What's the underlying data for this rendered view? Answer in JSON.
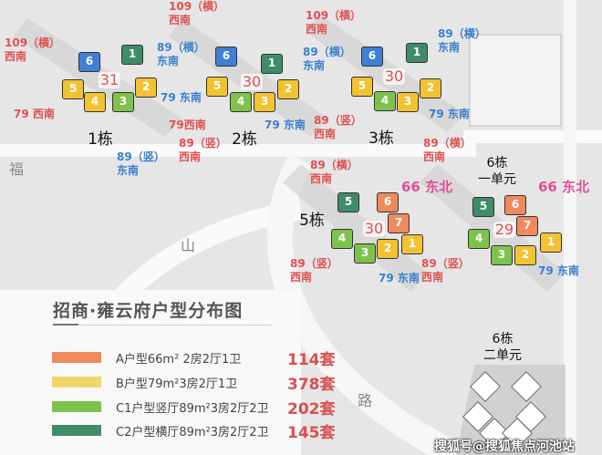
{
  "title": "招商·雍云府户型分布图",
  "roads": [
    "福",
    "山",
    "路"
  ],
  "colors": {
    "blue": "#3f7fd4",
    "dkgreen": "#3f8c68",
    "ltgreen": "#7fc24b",
    "yellow": "#f2c233",
    "orange": "#ef8a5c",
    "label_red": "#e05050",
    "label_blue": "#3a7fd0",
    "label_pink": "#e0509a"
  },
  "buildings": [
    {
      "name": "1栋",
      "center": "31",
      "units": [
        {
          "no": "6",
          "type": "blue"
        },
        {
          "no": "1",
          "type": "dkgreen"
        },
        {
          "no": "5",
          "type": "yellow"
        },
        {
          "no": "4",
          "type": "yellow"
        },
        {
          "no": "3",
          "type": "ltgreen"
        },
        {
          "no": "2",
          "type": "yellow"
        }
      ],
      "labels": [
        {
          "text": "109（横）西南",
          "color": "red"
        },
        {
          "text": "89（横）东南",
          "color": "blue"
        },
        {
          "text": "79 西南",
          "color": "red"
        },
        {
          "text": "79 东南",
          "color": "blue"
        },
        {
          "text": "89（竖）东南",
          "color": "blue"
        }
      ]
    },
    {
      "name": "2栋",
      "center": "30",
      "units": [
        {
          "no": "6",
          "type": "blue"
        },
        {
          "no": "1",
          "type": "dkgreen"
        },
        {
          "no": "5",
          "type": "yellow"
        },
        {
          "no": "4",
          "type": "ltgreen"
        },
        {
          "no": "3",
          "type": "yellow"
        },
        {
          "no": "2",
          "type": "yellow"
        }
      ],
      "labels": [
        {
          "text": "109（横）西南",
          "color": "red"
        },
        {
          "text": "89（横）东南",
          "color": "blue"
        },
        {
          "text": "79西南",
          "color": "red"
        },
        {
          "text": "89（竖）西南",
          "color": "red"
        },
        {
          "text": "79 东南",
          "color": "blue"
        }
      ]
    },
    {
      "name": "3栋",
      "center": "30",
      "units": [
        {
          "no": "6",
          "type": "blue"
        },
        {
          "no": "1",
          "type": "dkgreen"
        },
        {
          "no": "5",
          "type": "yellow"
        },
        {
          "no": "4",
          "type": "ltgreen"
        },
        {
          "no": "3",
          "type": "yellow"
        },
        {
          "no": "2",
          "type": "yellow"
        }
      ],
      "labels": [
        {
          "text": "109（横）西南",
          "color": "red"
        },
        {
          "text": "89（横）东南",
          "color": "blue"
        },
        {
          "text": "89（竖）西南",
          "color": "red"
        },
        {
          "text": "79 东南",
          "color": "blue"
        }
      ]
    },
    {
      "name": "5栋",
      "center": "30",
      "units": [
        {
          "no": "5",
          "type": "dkgreen"
        },
        {
          "no": "6",
          "type": "orange"
        },
        {
          "no": "7",
          "type": "orange"
        },
        {
          "no": "4",
          "type": "ltgreen"
        },
        {
          "no": "3",
          "type": "ltgreen"
        },
        {
          "no": "2",
          "type": "yellow"
        },
        {
          "no": "1",
          "type": "yellow"
        }
      ],
      "labels": [
        {
          "text": "89（横）西南",
          "color": "red"
        },
        {
          "text": "66 东北",
          "color": "pink"
        },
        {
          "text": "89（竖）西南",
          "color": "red"
        },
        {
          "text": "79 东南",
          "color": "blue"
        }
      ]
    },
    {
      "name": "6栋 一单元",
      "center": "29",
      "units": [
        {
          "no": "5",
          "type": "dkgreen"
        },
        {
          "no": "6",
          "type": "orange"
        },
        {
          "no": "7",
          "type": "orange"
        },
        {
          "no": "4",
          "type": "ltgreen"
        },
        {
          "no": "3",
          "type": "ltgreen"
        },
        {
          "no": "2",
          "type": "yellow"
        },
        {
          "no": "1",
          "type": "yellow"
        }
      ],
      "labels": [
        {
          "text": "89（横）西南",
          "color": "red"
        },
        {
          "text": "66 东北",
          "color": "pink"
        },
        {
          "text": "89（竖）西南",
          "color": "red"
        },
        {
          "text": "79 东南",
          "color": "blue"
        }
      ]
    }
  ],
  "building6_unit2": {
    "line1": "6栋",
    "line2": "二单元"
  },
  "legend": [
    {
      "color": "#ef8a5c",
      "label": "A户型66m² 2房2厅1卫",
      "count": "114套"
    },
    {
      "color": "#f0d66a",
      "label": "B户型79m²3房2厅1卫",
      "count": "378套"
    },
    {
      "color": "#7fc24b",
      "label": "C1户型竖厅89m²3房2厅2卫",
      "count": "202套"
    },
    {
      "color": "#3f8c68",
      "label": "C2户型横厅89m²3房2厅2卫",
      "count": "145套"
    }
  ],
  "watermark": "搜狐号@搜狐焦点河池站"
}
